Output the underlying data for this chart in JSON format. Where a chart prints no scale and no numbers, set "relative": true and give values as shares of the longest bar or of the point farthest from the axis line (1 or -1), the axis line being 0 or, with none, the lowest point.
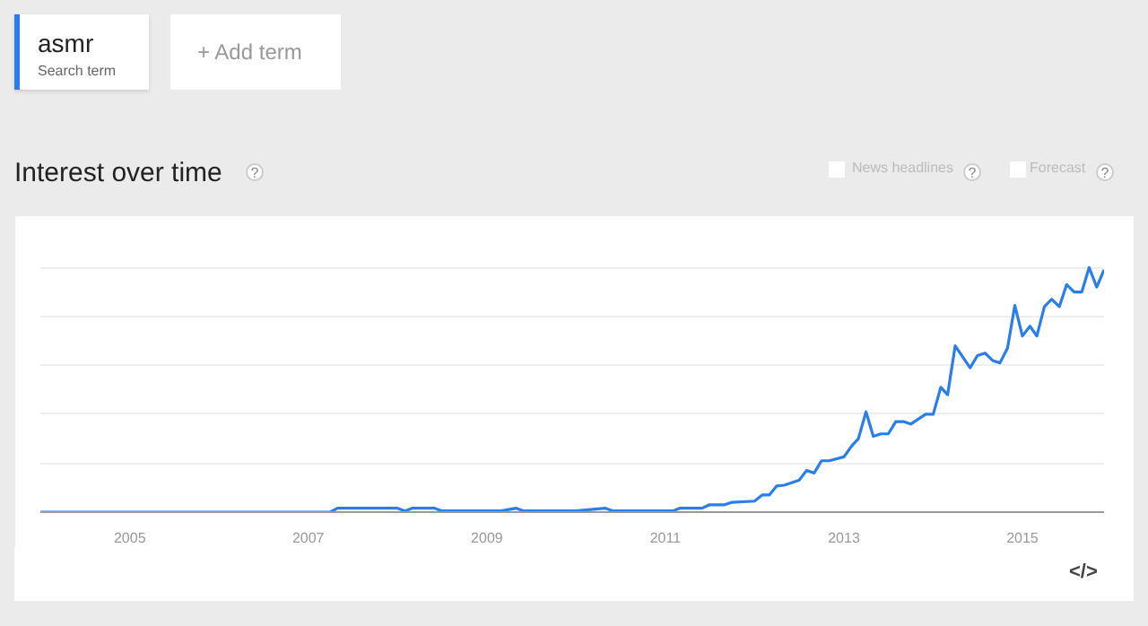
{
  "chart_data": {
    "type": "line",
    "title": "Interest over time",
    "relative": true,
    "grid": "y",
    "legend": "top left",
    "xlim": [
      "2004-01",
      "2015-12"
    ],
    "xticks": [
      "2005",
      "2007",
      "2009",
      "2011",
      "2013",
      "2015"
    ],
    "annotations": [
      "Search term",
      "+ Add term",
      "?",
      "News headlines",
      "?",
      "Forecast",
      "?",
      "</>"
    ],
    "x": [
      "2004-01",
      "2007-04",
      "2007-05",
      "2008-01",
      "2008-02",
      "2008-03",
      "2008-06",
      "2008-07",
      "2009-03",
      "2009-05",
      "2009-06",
      "2009-07",
      "2010-01",
      "2010-05",
      "2010-06",
      "2011-02",
      "2011-03",
      "2011-06",
      "2011-07",
      "2011-09",
      "2011-10",
      "2012-01",
      "2012-02",
      "2012-03",
      "2012-04",
      "2012-05",
      "2012-07",
      "2012-08",
      "2012-09",
      "2012-10",
      "2012-11",
      "2013-01",
      "2013-02",
      "2013-03",
      "2013-04",
      "2013-05",
      "2013-06",
      "2013-07",
      "2013-08",
      "2013-09",
      "2013-10",
      "2013-12",
      "2014-01",
      "2014-02",
      "2014-03",
      "2014-04",
      "2014-06",
      "2014-07",
      "2014-08",
      "2014-09",
      "2014-10",
      "2014-11",
      "2014-12",
      "2015-01",
      "2015-02",
      "2015-03",
      "2015-04",
      "2015-05",
      "2015-06",
      "2015-07",
      "2015-08",
      "2015-09",
      "2015-10",
      "2015-11",
      "2015-12"
    ],
    "series": [
      {
        "name": "asmr",
        "color": "#2b7de9",
        "values": [
          0,
          0,
          0.016,
          0.016,
          0.005,
          0.016,
          0.016,
          0.005,
          0.005,
          0.016,
          0.005,
          0.005,
          0.005,
          0.016,
          0.005,
          0.005,
          0.016,
          0.016,
          0.03,
          0.03,
          0.04,
          0.045,
          0.07,
          0.07,
          0.107,
          0.11,
          0.13,
          0.17,
          0.16,
          0.21,
          0.21,
          0.226,
          0.27,
          0.3,
          0.41,
          0.31,
          0.32,
          0.32,
          0.37,
          0.37,
          0.36,
          0.4,
          0.4,
          0.51,
          0.48,
          0.68,
          0.59,
          0.64,
          0.65,
          0.62,
          0.61,
          0.67,
          0.845,
          0.72,
          0.76,
          0.72,
          0.84,
          0.87,
          0.84,
          0.93,
          0.9,
          0.9,
          1.0,
          0.92,
          0.99
        ]
      }
    ]
  }
}
